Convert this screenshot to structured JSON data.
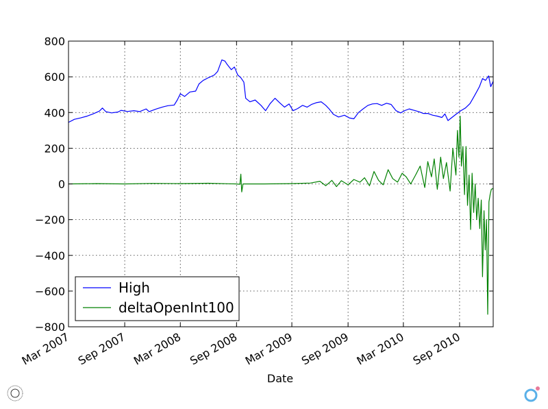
{
  "chart_data": {
    "type": "line",
    "title": "",
    "xlabel": "Date",
    "ylabel": "",
    "xlim": [
      "2007-03-01",
      "2010-12-20"
    ],
    "ylim": [
      -800,
      800
    ],
    "grid": true,
    "legend_position": "lower-left",
    "y_ticks": [
      "800",
      "600",
      "400",
      "200",
      "0",
      "−200",
      "−400",
      "−600",
      "−800"
    ],
    "x_ticks": [
      {
        "label": "Mar 2007",
        "date": "2007-03-01"
      },
      {
        "label": "Sep 2007",
        "date": "2007-09-01"
      },
      {
        "label": "Mar 2008",
        "date": "2008-03-01"
      },
      {
        "label": "Sep 2008",
        "date": "2008-09-01"
      },
      {
        "label": "Mar 2009",
        "date": "2009-03-01"
      },
      {
        "label": "Sep 2009",
        "date": "2009-09-01"
      },
      {
        "label": "Mar 2010",
        "date": "2010-03-01"
      },
      {
        "label": "Sep 2010",
        "date": "2010-09-01"
      }
    ],
    "series": [
      {
        "name": "High",
        "color": "#0000ff",
        "points": [
          [
            "2007-03-01",
            345
          ],
          [
            "2007-03-20",
            362
          ],
          [
            "2007-04-10",
            370
          ],
          [
            "2007-05-01",
            380
          ],
          [
            "2007-05-20",
            392
          ],
          [
            "2007-06-10",
            408
          ],
          [
            "2007-06-20",
            425
          ],
          [
            "2007-07-01",
            405
          ],
          [
            "2007-07-20",
            398
          ],
          [
            "2007-08-10",
            403
          ],
          [
            "2007-08-20",
            412
          ],
          [
            "2007-09-10",
            406
          ],
          [
            "2007-10-01",
            410
          ],
          [
            "2007-10-20",
            405
          ],
          [
            "2007-11-10",
            420
          ],
          [
            "2007-11-20",
            405
          ],
          [
            "2007-12-10",
            418
          ],
          [
            "2008-01-01",
            430
          ],
          [
            "2008-01-20",
            438
          ],
          [
            "2008-02-10",
            442
          ],
          [
            "2008-02-20",
            470
          ],
          [
            "2008-03-01",
            505
          ],
          [
            "2008-03-15",
            490
          ],
          [
            "2008-04-01",
            515
          ],
          [
            "2008-04-20",
            520
          ],
          [
            "2008-05-01",
            560
          ],
          [
            "2008-05-15",
            580
          ],
          [
            "2008-06-01",
            595
          ],
          [
            "2008-06-20",
            610
          ],
          [
            "2008-07-01",
            630
          ],
          [
            "2008-07-15",
            695
          ],
          [
            "2008-07-25",
            688
          ],
          [
            "2008-08-01",
            670
          ],
          [
            "2008-08-15",
            640
          ],
          [
            "2008-08-25",
            655
          ],
          [
            "2008-09-05",
            610
          ],
          [
            "2008-09-15",
            595
          ],
          [
            "2008-09-25",
            570
          ],
          [
            "2008-10-01",
            480
          ],
          [
            "2008-10-15",
            460
          ],
          [
            "2008-11-01",
            470
          ],
          [
            "2008-11-20",
            440
          ],
          [
            "2008-12-05",
            410
          ],
          [
            "2008-12-20",
            450
          ],
          [
            "2009-01-05",
            480
          ],
          [
            "2009-01-20",
            455
          ],
          [
            "2009-02-05",
            430
          ],
          [
            "2009-02-20",
            448
          ],
          [
            "2009-03-05",
            410
          ],
          [
            "2009-03-20",
            422
          ],
          [
            "2009-04-05",
            440
          ],
          [
            "2009-04-20",
            430
          ],
          [
            "2009-05-05",
            446
          ],
          [
            "2009-05-20",
            455
          ],
          [
            "2009-06-05",
            460
          ],
          [
            "2009-06-20",
            440
          ],
          [
            "2009-07-01",
            420
          ],
          [
            "2009-07-15",
            390
          ],
          [
            "2009-08-01",
            375
          ],
          [
            "2009-08-20",
            385
          ],
          [
            "2009-09-05",
            370
          ],
          [
            "2009-09-20",
            365
          ],
          [
            "2009-10-05",
            400
          ],
          [
            "2009-10-20",
            420
          ],
          [
            "2009-11-05",
            440
          ],
          [
            "2009-11-20",
            448
          ],
          [
            "2009-12-05",
            450
          ],
          [
            "2009-12-20",
            440
          ],
          [
            "2010-01-05",
            452
          ],
          [
            "2010-01-20",
            445
          ],
          [
            "2010-02-05",
            410
          ],
          [
            "2010-02-20",
            398
          ],
          [
            "2010-03-05",
            410
          ],
          [
            "2010-03-20",
            420
          ],
          [
            "2010-04-05",
            412
          ],
          [
            "2010-04-20",
            405
          ],
          [
            "2010-05-05",
            395
          ],
          [
            "2010-05-20",
            395
          ],
          [
            "2010-06-05",
            385
          ],
          [
            "2010-06-20",
            380
          ],
          [
            "2010-07-05",
            372
          ],
          [
            "2010-07-15",
            392
          ],
          [
            "2010-07-25",
            355
          ],
          [
            "2010-08-05",
            370
          ],
          [
            "2010-08-20",
            390
          ],
          [
            "2010-09-05",
            410
          ],
          [
            "2010-09-20",
            425
          ],
          [
            "2010-10-05",
            450
          ],
          [
            "2010-10-15",
            480
          ],
          [
            "2010-10-25",
            510
          ],
          [
            "2010-11-05",
            545
          ],
          [
            "2010-11-15",
            590
          ],
          [
            "2010-11-25",
            580
          ],
          [
            "2010-12-05",
            605
          ],
          [
            "2010-12-12",
            545
          ],
          [
            "2010-12-20",
            575
          ]
        ]
      },
      {
        "name": "deltaOpenInt100",
        "color": "#008000",
        "points": [
          [
            "2007-03-01",
            0
          ],
          [
            "2007-06-01",
            2
          ],
          [
            "2007-09-01",
            0
          ],
          [
            "2007-12-01",
            3
          ],
          [
            "2008-03-01",
            2
          ],
          [
            "2008-06-01",
            4
          ],
          [
            "2008-08-01",
            1
          ],
          [
            "2008-09-01",
            0
          ],
          [
            "2008-09-12",
            -2
          ],
          [
            "2008-09-15",
            55
          ],
          [
            "2008-09-18",
            -45
          ],
          [
            "2008-09-22",
            0
          ],
          [
            "2008-12-01",
            0
          ],
          [
            "2009-03-01",
            2
          ],
          [
            "2009-05-01",
            5
          ],
          [
            "2009-06-01",
            15
          ],
          [
            "2009-06-20",
            -10
          ],
          [
            "2009-07-10",
            20
          ],
          [
            "2009-07-25",
            -15
          ],
          [
            "2009-08-10",
            18
          ],
          [
            "2009-09-01",
            -5
          ],
          [
            "2009-09-20",
            25
          ],
          [
            "2009-10-10",
            10
          ],
          [
            "2009-10-25",
            35
          ],
          [
            "2009-11-10",
            -10
          ],
          [
            "2009-11-25",
            70
          ],
          [
            "2009-12-10",
            20
          ],
          [
            "2009-12-25",
            -5
          ],
          [
            "2010-01-10",
            80
          ],
          [
            "2010-01-25",
            30
          ],
          [
            "2010-02-10",
            10
          ],
          [
            "2010-02-25",
            60
          ],
          [
            "2010-03-10",
            40
          ],
          [
            "2010-03-25",
            0
          ],
          [
            "2010-04-10",
            50
          ],
          [
            "2010-04-25",
            100
          ],
          [
            "2010-05-10",
            -20
          ],
          [
            "2010-05-20",
            125
          ],
          [
            "2010-06-01",
            40
          ],
          [
            "2010-06-10",
            140
          ],
          [
            "2010-06-20",
            -30
          ],
          [
            "2010-07-01",
            150
          ],
          [
            "2010-07-10",
            30
          ],
          [
            "2010-07-20",
            120
          ],
          [
            "2010-08-01",
            -40
          ],
          [
            "2010-08-10",
            200
          ],
          [
            "2010-08-20",
            50
          ],
          [
            "2010-08-25",
            300
          ],
          [
            "2010-08-30",
            150
          ],
          [
            "2010-09-03",
            380
          ],
          [
            "2010-09-07",
            100
          ],
          [
            "2010-09-12",
            210
          ],
          [
            "2010-09-17",
            -60
          ],
          [
            "2010-09-22",
            210
          ],
          [
            "2010-09-27",
            -120
          ],
          [
            "2010-10-02",
            50
          ],
          [
            "2010-10-07",
            -255
          ],
          [
            "2010-10-12",
            60
          ],
          [
            "2010-10-17",
            -160
          ],
          [
            "2010-10-22",
            0
          ],
          [
            "2010-10-27",
            -200
          ],
          [
            "2010-11-01",
            -80
          ],
          [
            "2010-11-06",
            -250
          ],
          [
            "2010-11-11",
            -90
          ],
          [
            "2010-11-15",
            -520
          ],
          [
            "2010-11-20",
            -150
          ],
          [
            "2010-11-24",
            -370
          ],
          [
            "2010-11-28",
            -200
          ],
          [
            "2010-12-02",
            -730
          ],
          [
            "2010-12-06",
            -100
          ],
          [
            "2010-12-10",
            -60
          ],
          [
            "2010-12-14",
            -30
          ],
          [
            "2010-12-20",
            -25
          ]
        ]
      }
    ]
  }
}
